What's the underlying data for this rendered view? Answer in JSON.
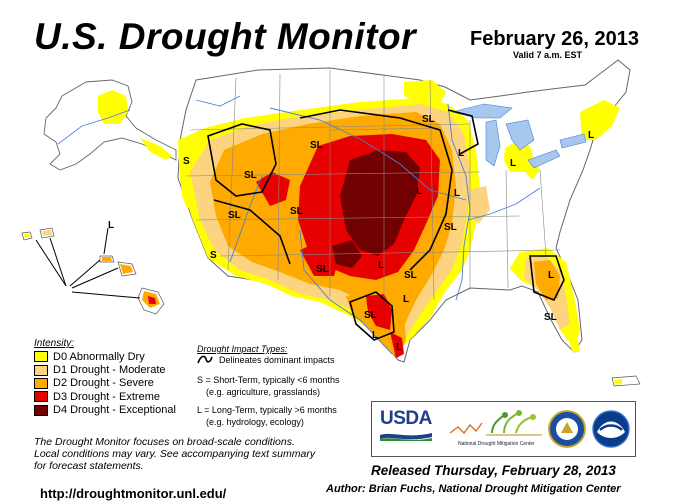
{
  "header": {
    "title": "U.S. Drought Monitor",
    "date": "February 26, 2013",
    "valid": "Valid 7 a.m. EST"
  },
  "colors": {
    "D0": "#ffff00",
    "D1": "#fcd37f",
    "D2": "#ffaa00",
    "D3": "#e60000",
    "D4": "#730000",
    "land": "#ffffff",
    "water": "#a6c8ef",
    "rivers": "#4a7fd6",
    "borders": "#777777"
  },
  "legend": {
    "heading": "Intensity:",
    "items": [
      {
        "key": "D0",
        "label": "D0 Abnormally Dry"
      },
      {
        "key": "D1",
        "label": "D1 Drought - Moderate"
      },
      {
        "key": "D2",
        "label": "D2 Drought - Severe"
      },
      {
        "key": "D3",
        "label": "D3 Drought - Extreme"
      },
      {
        "key": "D4",
        "label": "D4 Drought - Exceptional"
      }
    ]
  },
  "impacts": {
    "heading": "Drought Impact Types:",
    "line_label": "Delineates dominant impacts",
    "short_term": "S = Short-Term, typically <6 months",
    "short_term_eg": "(e.g. agriculture, grasslands)",
    "long_term": "L = Long-Term, typically >6 months",
    "long_term_eg": "(e.g. hydrology, ecology)"
  },
  "map_labels": {
    "s": "S",
    "l": "L",
    "sl": "SL"
  },
  "note": {
    "line1": "The Drought Monitor focuses on broad-scale conditions.",
    "line2": "Local conditions may vary. See accompanying text summary",
    "line3": "for forecast statements."
  },
  "logos": {
    "usda": "USDA",
    "ndmc": "National Drought Mitigation Center"
  },
  "footer": {
    "url": "http://droughtmonitor.unl.edu/",
    "released": "Released Thursday, February 28, 2013",
    "author": "Author: Brian Fuchs, National Drought Mitigation Center"
  }
}
